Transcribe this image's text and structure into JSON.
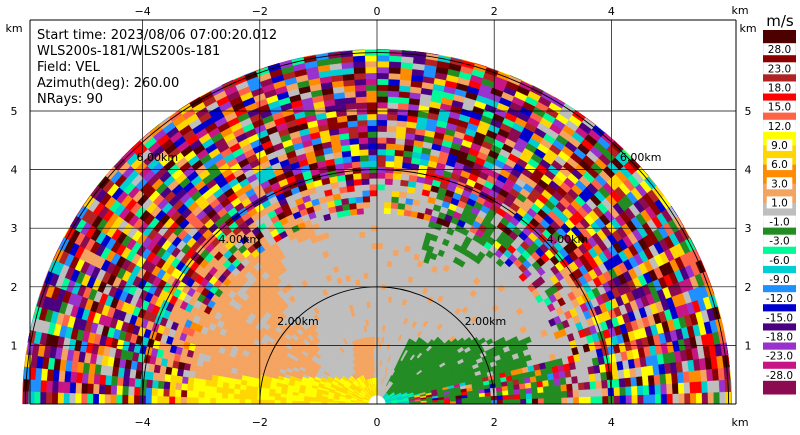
{
  "chart_data": {
    "type": "heatmap",
    "info_lines": [
      "Start time: 2023/08/06 07:00:20.012",
      "WLS200s-181/WLS200s-181",
      "Field: VEL",
      "Azimuth(deg): 260.00",
      "NRays: 90"
    ],
    "x_unit": "km",
    "y_unit": "km",
    "x_ticks": [
      -4,
      -2,
      0,
      2,
      4
    ],
    "y_ticks": [
      1,
      2,
      3,
      4,
      5
    ],
    "xlim": [
      -6.1,
      6.1
    ],
    "ylim": [
      0,
      6.0
    ],
    "range_rings": [
      {
        "radius_km": 2,
        "label": "2.00km"
      },
      {
        "radius_km": 4,
        "label": "4.00km"
      },
      {
        "radius_km": 6,
        "label": "6.00km"
      }
    ],
    "max_range_km": 6.05,
    "colorbar": {
      "title": "m/s",
      "tick_labels": [
        "-28.0",
        "-23.0",
        "-18.0",
        "-15.0",
        "-12.0",
        "-9.0",
        "-6.0",
        "-3.0",
        "-1.0",
        "1.0",
        "3.0",
        "6.0",
        "9.0",
        "12.0",
        "15.0",
        "18.0",
        "23.0",
        "28.0"
      ],
      "colors": [
        "#8b0a50",
        "#c71585",
        "#9932cc",
        "#4b0082",
        "#0000cd",
        "#1e90ff",
        "#00ced1",
        "#00fa9a",
        "#228b22",
        "#bebebe",
        "#f4a460",
        "#ff8c00",
        "#ffd700",
        "#ffff00",
        "#ff6347",
        "#ff0000",
        "#b22222",
        "#8b0000",
        "#4d0000"
      ]
    }
  }
}
